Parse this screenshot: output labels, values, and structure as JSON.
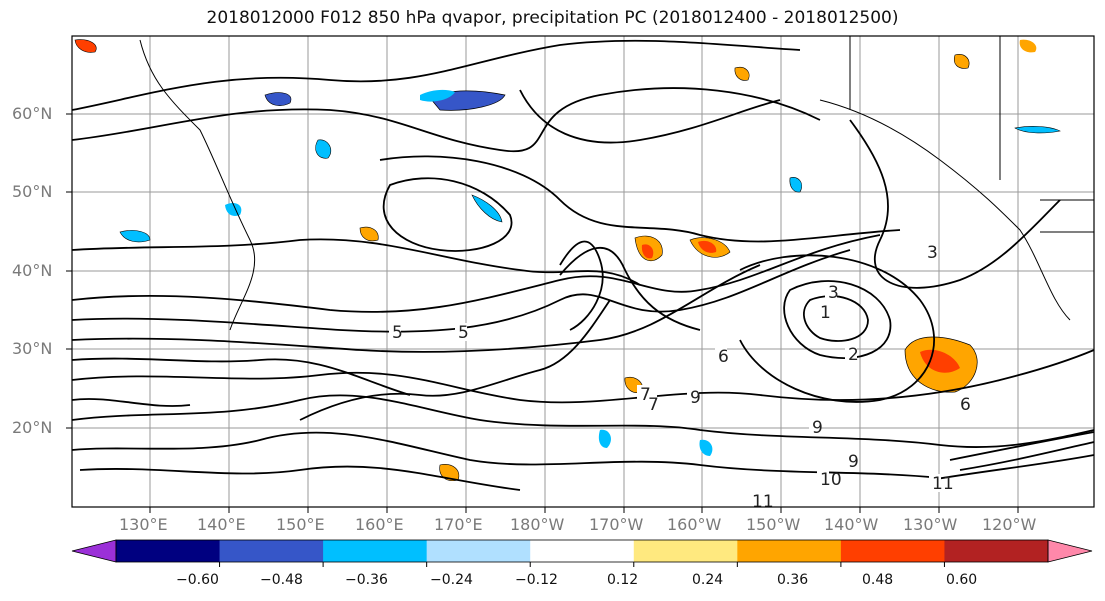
{
  "title": "2018012000 F012 850 hPa qvapor, precipitation PC (2018012400 - 2018012500)",
  "lat_labels": [
    "60°N",
    "50°N",
    "40°N",
    "30°N",
    "20°N"
  ],
  "lon_labels": [
    "130°E",
    "140°E",
    "150°E",
    "160°E",
    "170°E",
    "180°W",
    "170°W",
    "160°W",
    "150°W",
    "140°W",
    "130°W",
    "120°W"
  ],
  "colorbar": {
    "colors": [
      "#9b30d8",
      "#000080",
      "#3656c8",
      "#00bfff",
      "#b0e0ff",
      "#ffffff",
      "#ffe97f",
      "#ffa500",
      "#ff3f00",
      "#b22222",
      "#ff88aa"
    ],
    "tick_labels": [
      "−0.60",
      "−0.48",
      "−0.36",
      "−0.24",
      "−0.12",
      "0.12",
      "0.24",
      "0.36",
      "0.48",
      "0.60"
    ]
  },
  "contour_labels": [
    "5",
    "5",
    "3",
    "3",
    "2",
    "1",
    "6",
    "7",
    "9",
    "9",
    "9",
    "10",
    "11",
    "11",
    "6",
    "7"
  ]
}
